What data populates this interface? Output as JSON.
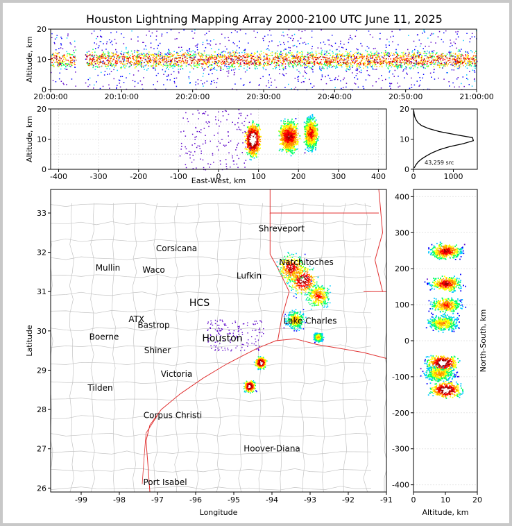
{
  "chart_data": {
    "title": "Houston Lightning Mapping Array 2000-2100 UTC June 11, 2025",
    "panels": [
      {
        "name": "time-altitude",
        "type": "heatmap",
        "ylabel": "Altitude, km",
        "ylim": [
          0,
          20
        ],
        "yticks": [
          "0",
          "10",
          "20"
        ],
        "xticks": [
          "20:00:00",
          "20:10:00",
          "20:20:00",
          "20:30:00",
          "20:40:00",
          "20:50:00",
          "21:00:00"
        ],
        "xlim": [
          "20:00:00",
          "21:00:00"
        ],
        "gap_minutes": [
          3.5,
          4.8
        ],
        "core_altitude_km": [
          6,
          14
        ]
      },
      {
        "name": "east-west-altitude",
        "type": "heatmap",
        "xlabel": "East-West, km",
        "ylabel": "Altitude, km",
        "xlim": [
          -420,
          420
        ],
        "ylim": [
          0,
          20
        ],
        "xticks": [
          "-400",
          "-300",
          "-200",
          "-100",
          "0",
          "100",
          "200",
          "300",
          "400"
        ],
        "yticks": [
          "0",
          "10",
          "20"
        ],
        "grid": true
      },
      {
        "name": "altitude-histogram",
        "type": "line",
        "xticks": [
          "0",
          "1000"
        ],
        "yticks": [
          "0",
          "10",
          "20"
        ],
        "xlim": [
          0,
          1600
        ],
        "ylim": [
          0,
          20
        ],
        "annotation": "43,259 src",
        "altitude_km": [
          0,
          1,
          2,
          3,
          4,
          5,
          6,
          7,
          8,
          9,
          10,
          11,
          12,
          13,
          14,
          15,
          16,
          17,
          18,
          19
        ],
        "source_count": [
          20,
          60,
          120,
          210,
          330,
          470,
          650,
          900,
          1250,
          1500,
          1480,
          1050,
          650,
          380,
          200,
          110,
          60,
          30,
          15,
          5
        ]
      },
      {
        "name": "plan-view-map",
        "type": "scatter",
        "xlabel": "Longitude",
        "ylabel": "Latitude",
        "xlim": [
          -99.8,
          -91
        ],
        "ylim": [
          25.9,
          33.6
        ],
        "xticks": [
          "-99",
          "-98",
          "-97",
          "-96",
          "-95",
          "-94",
          "-93",
          "-92",
          "-91"
        ],
        "yticks": [
          "26",
          "27",
          "28",
          "29",
          "30",
          "31",
          "32",
          "33"
        ],
        "places": [
          {
            "label": "Shreveport",
            "lon": -93.75,
            "lat": 32.6,
            "color": "#000000"
          },
          {
            "label": "Corsicana",
            "lon": -96.5,
            "lat": 32.1,
            "color": "#000000"
          },
          {
            "label": "Mullin",
            "lon": -98.3,
            "lat": 31.6,
            "color": "#f08c3c"
          },
          {
            "label": "Waco",
            "lon": -97.1,
            "lat": 31.55,
            "color": "#000000"
          },
          {
            "label": "Natchitoches",
            "lon": -93.1,
            "lat": 31.75,
            "color": "#000000"
          },
          {
            "label": "Lufkin",
            "lon": -94.6,
            "lat": 31.4,
            "color": "#000000"
          },
          {
            "label": "HCS",
            "lon": -95.9,
            "lat": 30.7,
            "color": "#7a1f1f"
          },
          {
            "label": "ATX",
            "lon": -97.55,
            "lat": 30.3,
            "color": "#f08c3c"
          },
          {
            "label": "Bastrop",
            "lon": -97.1,
            "lat": 30.15,
            "color": "#000000"
          },
          {
            "label": "Lake Charles",
            "lon": -93.0,
            "lat": 30.25,
            "color": "#000000"
          },
          {
            "label": "Boerne",
            "lon": -98.4,
            "lat": 29.85,
            "color": "#000000"
          },
          {
            "label": "Houston",
            "lon": -95.3,
            "lat": 29.8,
            "color": "#f0b43c"
          },
          {
            "label": "Shiner",
            "lon": -97.0,
            "lat": 29.5,
            "color": "#000000"
          },
          {
            "label": "Victoria",
            "lon": -96.5,
            "lat": 28.9,
            "color": "#000000"
          },
          {
            "label": "Tilden",
            "lon": -98.5,
            "lat": 28.55,
            "color": "#000000"
          },
          {
            "label": "Corpus Christi",
            "lon": -96.6,
            "lat": 27.85,
            "color": "#000000"
          },
          {
            "label": "Hoover-Diana",
            "lon": -94.0,
            "lat": 27.0,
            "color": "#3232e6"
          },
          {
            "label": "Port Isabel",
            "lon": -96.8,
            "lat": 26.15,
            "color": "#000000"
          }
        ]
      },
      {
        "name": "north-south-altitude",
        "type": "heatmap",
        "xlabel": "Altitude, km",
        "ylabel": "North-South, km",
        "xlim": [
          0,
          20
        ],
        "ylim": [
          -420,
          420
        ],
        "xticks": [
          "0",
          "10",
          "20"
        ],
        "yticks": [
          "-400",
          "-300",
          "-200",
          "-100",
          "0",
          "100",
          "200",
          "300",
          "400"
        ]
      }
    ],
    "colormap": [
      "#5a00c8",
      "#0000ff",
      "#00c8ff",
      "#00ff64",
      "#ffff00",
      "#ff9600",
      "#ff0000",
      "#a00000",
      "#ffffff"
    ]
  }
}
